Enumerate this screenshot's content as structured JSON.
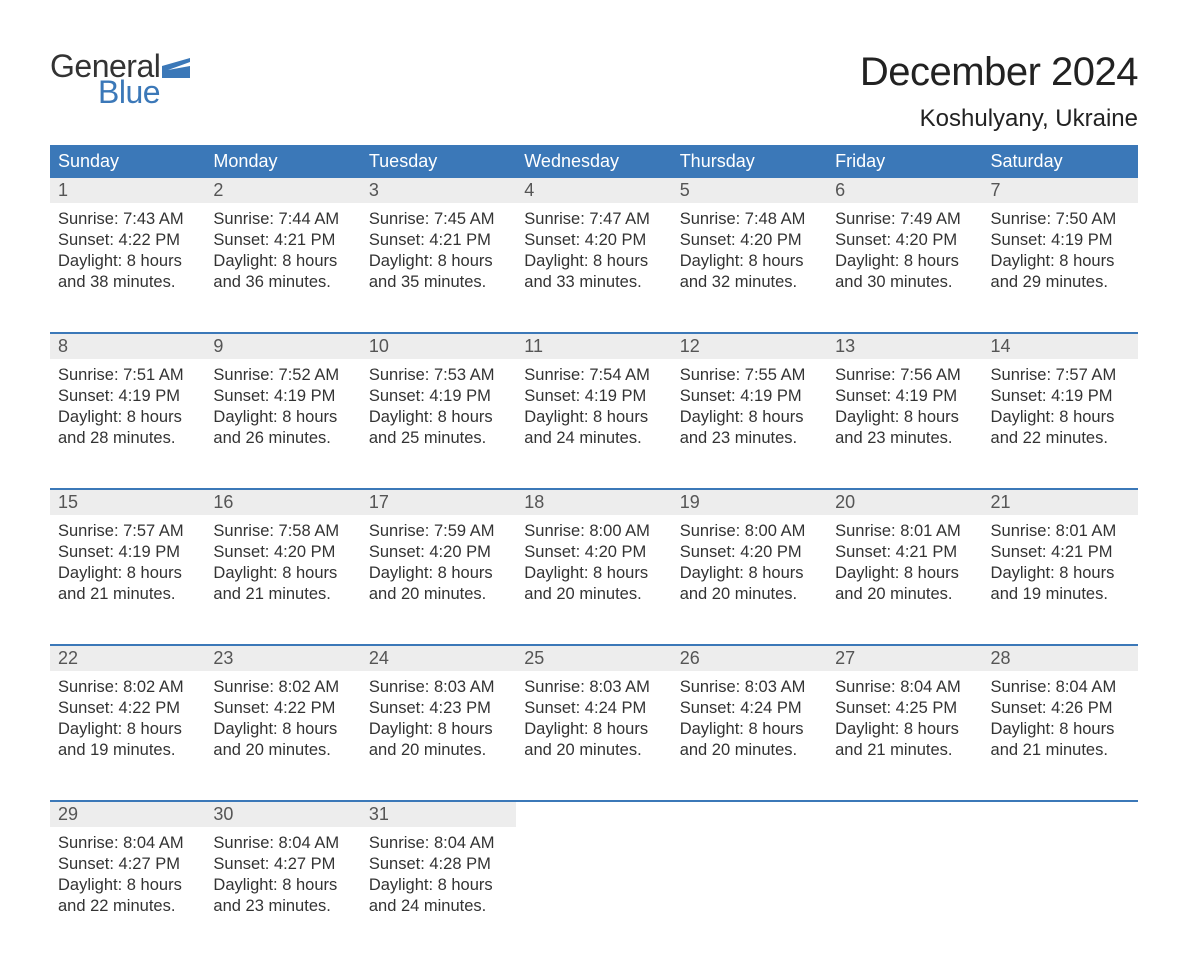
{
  "logo": {
    "general": "General",
    "blue": "Blue",
    "flag_color": "#3b78b8"
  },
  "title": "December 2024",
  "location": "Koshulyany, Ukraine",
  "colors": {
    "header_bg": "#3b78b8",
    "header_text": "#ffffff",
    "daynum_bg": "#ededed",
    "daynum_text": "#555555",
    "body_text": "#333333",
    "page_bg": "#ffffff"
  },
  "day_headers": [
    "Sunday",
    "Monday",
    "Tuesday",
    "Wednesday",
    "Thursday",
    "Friday",
    "Saturday"
  ],
  "weeks": [
    [
      {
        "num": "1",
        "sunrise": "Sunrise: 7:43 AM",
        "sunset": "Sunset: 4:22 PM",
        "day1": "Daylight: 8 hours",
        "day2": "and 38 minutes."
      },
      {
        "num": "2",
        "sunrise": "Sunrise: 7:44 AM",
        "sunset": "Sunset: 4:21 PM",
        "day1": "Daylight: 8 hours",
        "day2": "and 36 minutes."
      },
      {
        "num": "3",
        "sunrise": "Sunrise: 7:45 AM",
        "sunset": "Sunset: 4:21 PM",
        "day1": "Daylight: 8 hours",
        "day2": "and 35 minutes."
      },
      {
        "num": "4",
        "sunrise": "Sunrise: 7:47 AM",
        "sunset": "Sunset: 4:20 PM",
        "day1": "Daylight: 8 hours",
        "day2": "and 33 minutes."
      },
      {
        "num": "5",
        "sunrise": "Sunrise: 7:48 AM",
        "sunset": "Sunset: 4:20 PM",
        "day1": "Daylight: 8 hours",
        "day2": "and 32 minutes."
      },
      {
        "num": "6",
        "sunrise": "Sunrise: 7:49 AM",
        "sunset": "Sunset: 4:20 PM",
        "day1": "Daylight: 8 hours",
        "day2": "and 30 minutes."
      },
      {
        "num": "7",
        "sunrise": "Sunrise: 7:50 AM",
        "sunset": "Sunset: 4:19 PM",
        "day1": "Daylight: 8 hours",
        "day2": "and 29 minutes."
      }
    ],
    [
      {
        "num": "8",
        "sunrise": "Sunrise: 7:51 AM",
        "sunset": "Sunset: 4:19 PM",
        "day1": "Daylight: 8 hours",
        "day2": "and 28 minutes."
      },
      {
        "num": "9",
        "sunrise": "Sunrise: 7:52 AM",
        "sunset": "Sunset: 4:19 PM",
        "day1": "Daylight: 8 hours",
        "day2": "and 26 minutes."
      },
      {
        "num": "10",
        "sunrise": "Sunrise: 7:53 AM",
        "sunset": "Sunset: 4:19 PM",
        "day1": "Daylight: 8 hours",
        "day2": "and 25 minutes."
      },
      {
        "num": "11",
        "sunrise": "Sunrise: 7:54 AM",
        "sunset": "Sunset: 4:19 PM",
        "day1": "Daylight: 8 hours",
        "day2": "and 24 minutes."
      },
      {
        "num": "12",
        "sunrise": "Sunrise: 7:55 AM",
        "sunset": "Sunset: 4:19 PM",
        "day1": "Daylight: 8 hours",
        "day2": "and 23 minutes."
      },
      {
        "num": "13",
        "sunrise": "Sunrise: 7:56 AM",
        "sunset": "Sunset: 4:19 PM",
        "day1": "Daylight: 8 hours",
        "day2": "and 23 minutes."
      },
      {
        "num": "14",
        "sunrise": "Sunrise: 7:57 AM",
        "sunset": "Sunset: 4:19 PM",
        "day1": "Daylight: 8 hours",
        "day2": "and 22 minutes."
      }
    ],
    [
      {
        "num": "15",
        "sunrise": "Sunrise: 7:57 AM",
        "sunset": "Sunset: 4:19 PM",
        "day1": "Daylight: 8 hours",
        "day2": "and 21 minutes."
      },
      {
        "num": "16",
        "sunrise": "Sunrise: 7:58 AM",
        "sunset": "Sunset: 4:20 PM",
        "day1": "Daylight: 8 hours",
        "day2": "and 21 minutes."
      },
      {
        "num": "17",
        "sunrise": "Sunrise: 7:59 AM",
        "sunset": "Sunset: 4:20 PM",
        "day1": "Daylight: 8 hours",
        "day2": "and 20 minutes."
      },
      {
        "num": "18",
        "sunrise": "Sunrise: 8:00 AM",
        "sunset": "Sunset: 4:20 PM",
        "day1": "Daylight: 8 hours",
        "day2": "and 20 minutes."
      },
      {
        "num": "19",
        "sunrise": "Sunrise: 8:00 AM",
        "sunset": "Sunset: 4:20 PM",
        "day1": "Daylight: 8 hours",
        "day2": "and 20 minutes."
      },
      {
        "num": "20",
        "sunrise": "Sunrise: 8:01 AM",
        "sunset": "Sunset: 4:21 PM",
        "day1": "Daylight: 8 hours",
        "day2": "and 20 minutes."
      },
      {
        "num": "21",
        "sunrise": "Sunrise: 8:01 AM",
        "sunset": "Sunset: 4:21 PM",
        "day1": "Daylight: 8 hours",
        "day2": "and 19 minutes."
      }
    ],
    [
      {
        "num": "22",
        "sunrise": "Sunrise: 8:02 AM",
        "sunset": "Sunset: 4:22 PM",
        "day1": "Daylight: 8 hours",
        "day2": "and 19 minutes."
      },
      {
        "num": "23",
        "sunrise": "Sunrise: 8:02 AM",
        "sunset": "Sunset: 4:22 PM",
        "day1": "Daylight: 8 hours",
        "day2": "and 20 minutes."
      },
      {
        "num": "24",
        "sunrise": "Sunrise: 8:03 AM",
        "sunset": "Sunset: 4:23 PM",
        "day1": "Daylight: 8 hours",
        "day2": "and 20 minutes."
      },
      {
        "num": "25",
        "sunrise": "Sunrise: 8:03 AM",
        "sunset": "Sunset: 4:24 PM",
        "day1": "Daylight: 8 hours",
        "day2": "and 20 minutes."
      },
      {
        "num": "26",
        "sunrise": "Sunrise: 8:03 AM",
        "sunset": "Sunset: 4:24 PM",
        "day1": "Daylight: 8 hours",
        "day2": "and 20 minutes."
      },
      {
        "num": "27",
        "sunrise": "Sunrise: 8:04 AM",
        "sunset": "Sunset: 4:25 PM",
        "day1": "Daylight: 8 hours",
        "day2": "and 21 minutes."
      },
      {
        "num": "28",
        "sunrise": "Sunrise: 8:04 AM",
        "sunset": "Sunset: 4:26 PM",
        "day1": "Daylight: 8 hours",
        "day2": "and 21 minutes."
      }
    ],
    [
      {
        "num": "29",
        "sunrise": "Sunrise: 8:04 AM",
        "sunset": "Sunset: 4:27 PM",
        "day1": "Daylight: 8 hours",
        "day2": "and 22 minutes."
      },
      {
        "num": "30",
        "sunrise": "Sunrise: 8:04 AM",
        "sunset": "Sunset: 4:27 PM",
        "day1": "Daylight: 8 hours",
        "day2": "and 23 minutes."
      },
      {
        "num": "31",
        "sunrise": "Sunrise: 8:04 AM",
        "sunset": "Sunset: 4:28 PM",
        "day1": "Daylight: 8 hours",
        "day2": "and 24 minutes."
      },
      {
        "empty": true
      },
      {
        "empty": true
      },
      {
        "empty": true
      },
      {
        "empty": true
      }
    ]
  ]
}
